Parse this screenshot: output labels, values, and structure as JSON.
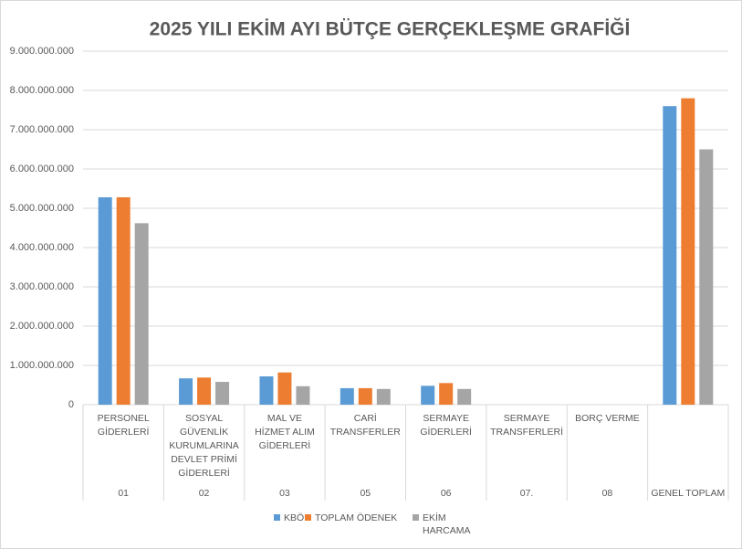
{
  "chart_data": {
    "type": "bar",
    "title": "2025 YILI EKİM AYI BÜTÇE GERÇEKLEŞME GRAFİĞİ",
    "categories": [
      "PERSONEL GİDERLERİ",
      "SOSYAL GÜVENLİK KURUMLARINA DEVLET PRİMİ GİDERLERİ",
      "MAL VE HİZMET ALIM GİDERLERİ",
      "CARİ TRANSFERLER",
      "SERMAYE GİDERLERİ",
      "SERMAYE TRANSFERLERİ",
      "BORÇ VERME",
      null
    ],
    "category_codes": [
      "01",
      "02",
      "03",
      "05",
      "06",
      "07.",
      "08",
      "GENEL TOPLAM"
    ],
    "series": [
      {
        "name": "KBÖ",
        "color": "#5b9bd5",
        "values": [
          5280000000,
          670000000,
          720000000,
          420000000,
          480000000,
          0,
          0,
          7600000000
        ]
      },
      {
        "name": "TOPLAM ÖDENEK",
        "color": "#ed7d31",
        "values": [
          5280000000,
          690000000,
          820000000,
          420000000,
          550000000,
          0,
          0,
          7800000000
        ]
      },
      {
        "name": "EKİM HARCAMA",
        "color": "#a5a5a5",
        "values": [
          4620000000,
          580000000,
          470000000,
          400000000,
          400000000,
          0,
          0,
          6500000000
        ]
      }
    ],
    "ylim": [
      0,
      9000000000
    ],
    "yticks": [
      0,
      {
        "value": 1000000000,
        "label": "1.000.000.000"
      },
      {
        "value": 2000000000,
        "label": "2.000.000.000"
      },
      {
        "value": 3000000000,
        "label": "3.000.000.000"
      },
      {
        "value": 4000000000,
        "label": "4.000.000.000"
      },
      {
        "value": 5000000000,
        "label": "5.000.000.000"
      },
      {
        "value": 6000000000,
        "label": "6.000.000.000"
      },
      {
        "value": 7000000000,
        "label": "7.000.000.000"
      },
      {
        "value": 8000000000,
        "label": "8.000.000.000"
      },
      {
        "value": 9000000000,
        "label": "9.000.000.000"
      }
    ],
    "grid": true,
    "legend": "bottom"
  }
}
